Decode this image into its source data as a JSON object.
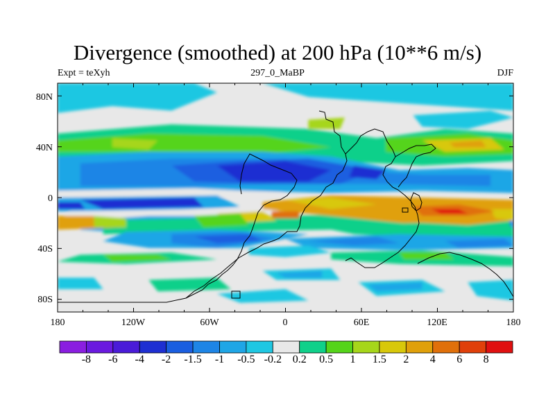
{
  "title": "Divergence (smoothed) at 200 hPa (10**6 m/s)",
  "subtitle_left": "Expt = teXyh",
  "subtitle_center": "297_0_MaBP",
  "subtitle_right": "DJF",
  "axes": {
    "x_ticks": [
      "180",
      "120W",
      "60W",
      "0",
      "60E",
      "120E",
      "180"
    ],
    "y_ticks": [
      "80N",
      "40N",
      "0",
      "40S",
      "80S"
    ],
    "x_range_lon": [
      -180,
      180
    ],
    "y_range_lat": [
      -90,
      90
    ]
  },
  "colorbar": {
    "labels": [
      "-8",
      "-6",
      "-4",
      "-2",
      "-1.5",
      "-1",
      "-0.5",
      "-0.2",
      "0.2",
      "0.5",
      "1",
      "1.5",
      "2",
      "4",
      "6",
      "8"
    ],
    "colors": [
      "#8a1ee0",
      "#6a1adf",
      "#4a1bd8",
      "#1e2fd2",
      "#1a5ee0",
      "#1e85e6",
      "#1fa6e6",
      "#1fc7e2",
      "#e8e8e8",
      "#10d08a",
      "#55d41a",
      "#a6d61a",
      "#d8c80a",
      "#e0a00a",
      "#e0700a",
      "#e0400a",
      "#e01010"
    ]
  },
  "field_colors": {
    "strong_neg": "#1e2fd2",
    "neg": "#1a5ee0",
    "mid_neg": "#1e85e6",
    "weak_neg": "#1fa6e6",
    "faint_neg": "#1fc7e2",
    "neutral": "#e8e8e8",
    "faint_pos": "#10d08a",
    "weak_pos": "#55d41a",
    "mid_pos": "#a6d61a",
    "pos": "#d8c80a",
    "strong_pos": "#e0a00a",
    "hot": "#e0700a",
    "max": "#e01010"
  }
}
